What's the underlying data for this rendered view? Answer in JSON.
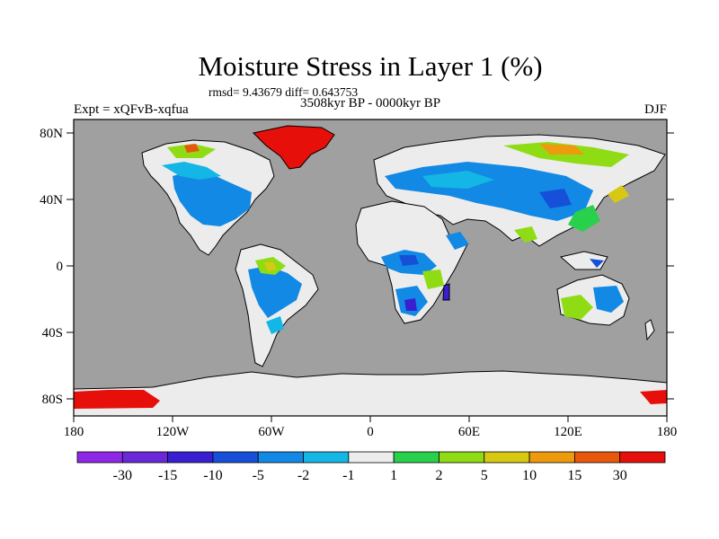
{
  "title": "Moisture Stress in Layer 1 (%)",
  "stats_line": "rmsd= 9.43679 diff= 0.643753",
  "period_line": "3508kyr BP - 0000kyr BP",
  "left_label": "Expt = xQFvB-xqfua",
  "right_label": "DJF",
  "lat_ticks": [
    "80N",
    "40N",
    "0",
    "40S",
    "80S"
  ],
  "lon_ticks": [
    "180",
    "120W",
    "60W",
    "0",
    "60E",
    "120E",
    "180"
  ],
  "colorbar": {
    "colors": [
      "#8f28e6",
      "#6a28d7",
      "#3a1fd1",
      "#1650d8",
      "#1289e5",
      "#14b6e5",
      "#ececec",
      "#28d04c",
      "#8fdc14",
      "#d8c814",
      "#ee9a0e",
      "#e8580c",
      "#e60f0a"
    ],
    "labels": [
      "-30",
      "-15",
      "-10",
      "-5",
      "-2",
      "-1",
      "1",
      "2",
      "5",
      "10",
      "15",
      "30"
    ]
  },
  "palette": {
    "ocean": "#a0a0a0",
    "land_neutral": "#ececec",
    "coast": "#000000"
  }
}
